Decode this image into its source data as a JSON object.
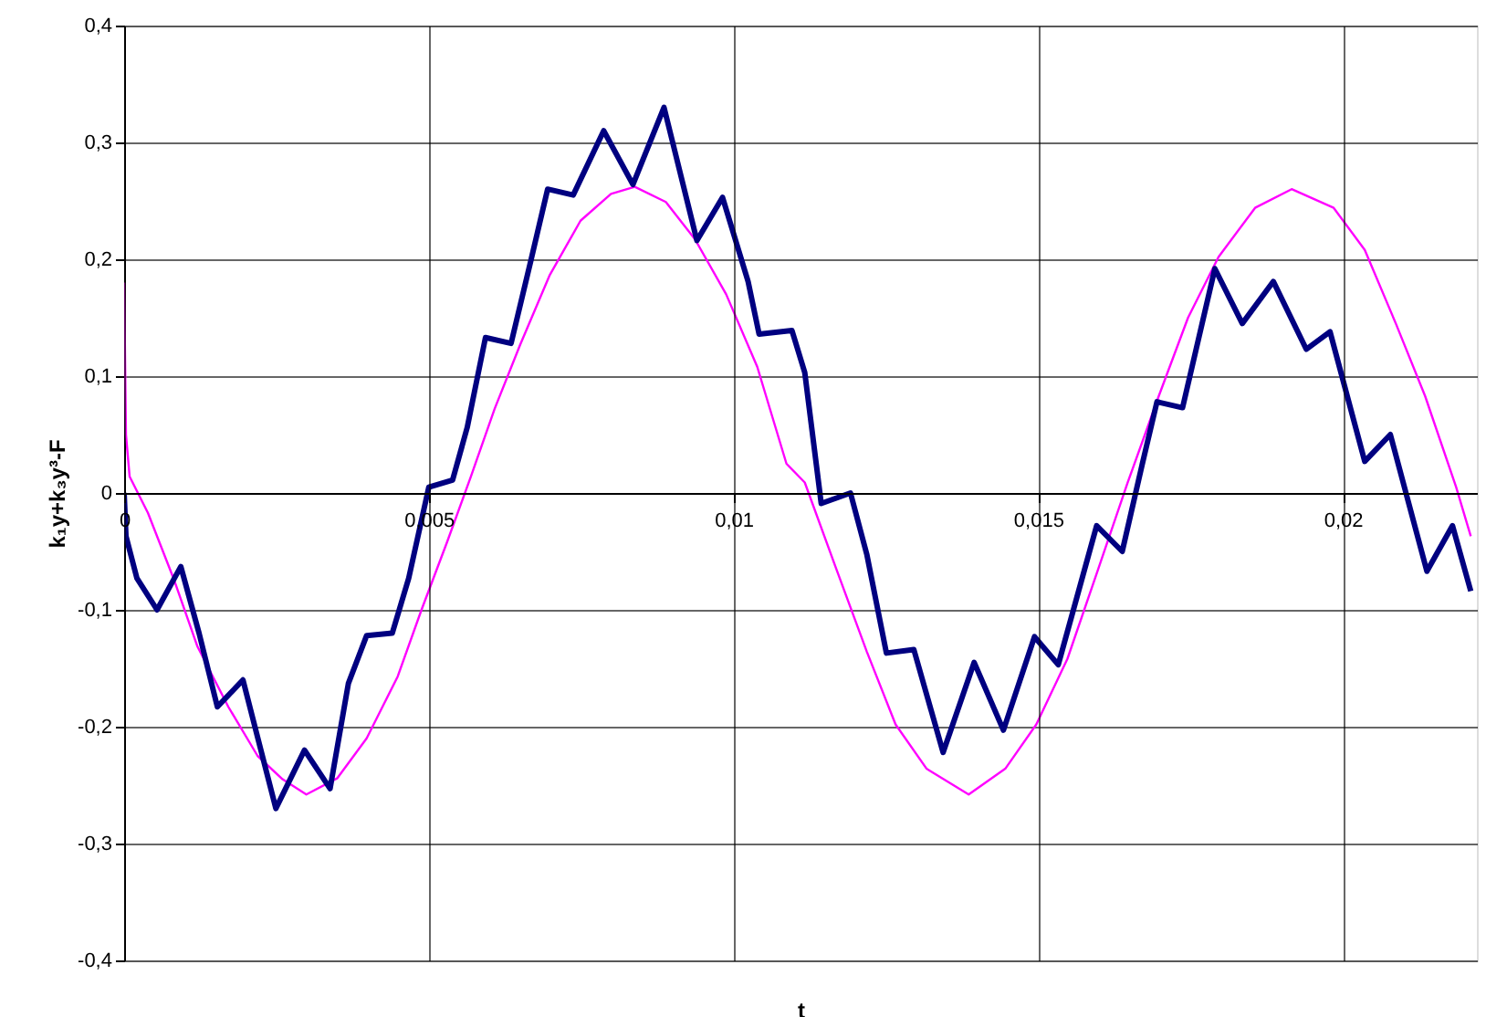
{
  "chart_data": {
    "type": "line",
    "xlabel": "t",
    "ylabel": "k₁y+k₃y³-F",
    "xlim": [
      0,
      0.0222
    ],
    "ylim": [
      -0.4,
      0.4
    ],
    "xticks": [
      {
        "value": 0,
        "label": "0"
      },
      {
        "value": 0.005,
        "label": "0,005"
      },
      {
        "value": 0.01,
        "label": "0,01"
      },
      {
        "value": 0.015,
        "label": "0,015"
      },
      {
        "value": 0.02,
        "label": "0,02"
      }
    ],
    "yticks": [
      {
        "value": -0.4,
        "label": "-0,4"
      },
      {
        "value": -0.3,
        "label": "-0,3"
      },
      {
        "value": -0.2,
        "label": "-0,2"
      },
      {
        "value": -0.1,
        "label": "-0,1"
      },
      {
        "value": 0,
        "label": "0"
      },
      {
        "value": 0.1,
        "label": "0,1"
      },
      {
        "value": 0.2,
        "label": "0,2"
      },
      {
        "value": 0.3,
        "label": "0,3"
      },
      {
        "value": 0.4,
        "label": "0,4"
      }
    ],
    "grid": true,
    "legend": false,
    "marker": "none",
    "line_style": "solid",
    "series": [
      {
        "color": "#000080",
        "x": [
          0,
          3e-05,
          0.00021,
          0.00054,
          0.00093,
          0.00123,
          0.00153,
          0.00195,
          0.00219,
          0.00249,
          0.00296,
          0.00338,
          0.00368,
          0.00398,
          0.0044,
          0.00467,
          0.005,
          0.00539,
          0.00563,
          0.00593,
          0.00635,
          0.00668,
          0.00695,
          0.00737,
          0.00787,
          0.00835,
          0.00886,
          0.0094,
          0.00982,
          0.01024,
          0.01042,
          0.01096,
          0.01117,
          0.01144,
          0.01192,
          0.01219,
          0.01251,
          0.01296,
          0.01344,
          0.01395,
          0.01443,
          0.01494,
          0.01533,
          0.01596,
          0.01638,
          0.01671,
          0.01695,
          0.01737,
          0.0179,
          0.01835,
          0.01886,
          0.0194,
          0.01979,
          0.02036,
          0.02078,
          0.02138,
          0.0218,
          0.0221
        ],
        "values": [
          0,
          -0.037,
          -0.073,
          -0.1,
          -0.063,
          -0.12,
          -0.183,
          -0.16,
          -0.209,
          -0.27,
          -0.22,
          -0.253,
          -0.163,
          -0.122,
          -0.12,
          -0.073,
          0.005,
          0.011,
          0.056,
          0.133,
          0.128,
          0.2,
          0.26,
          0.255,
          0.31,
          0.264,
          0.33,
          0.216,
          0.253,
          0.181,
          0.136,
          0.139,
          0.103,
          -0.009,
          0,
          -0.053,
          -0.137,
          -0.134,
          -0.222,
          -0.145,
          -0.203,
          -0.123,
          -0.147,
          -0.028,
          -0.05,
          0.025,
          0.078,
          0.073,
          0.192,
          0.145,
          0.181,
          0.123,
          0.138,
          0.027,
          0.05,
          -0.067,
          -0.028,
          -0.084
        ]
      },
      {
        "color": "#ff00ff",
        "x": [
          0,
          3e-05,
          9e-05,
          0.00039,
          0.00081,
          0.0012,
          0.00171,
          0.00219,
          0.0026,
          0.00299,
          0.0035,
          0.00398,
          0.00449,
          0.00488,
          0.0053,
          0.00569,
          0.00608,
          0.0065,
          0.00698,
          0.00749,
          0.00799,
          0.00838,
          0.00889,
          0.00937,
          0.00988,
          0.01039,
          0.01087,
          0.01117,
          0.01168,
          0.01219,
          0.01266,
          0.01317,
          0.01386,
          0.01446,
          0.01497,
          0.01548,
          0.01596,
          0.01647,
          0.01698,
          0.01746,
          0.01796,
          0.01856,
          0.01916,
          0.01985,
          0.02036,
          0.02087,
          0.02135,
          0.02186,
          0.0221
        ],
        "values": [
          0.18,
          0.05,
          0.014,
          -0.017,
          -0.073,
          -0.131,
          -0.183,
          -0.225,
          -0.245,
          -0.258,
          -0.244,
          -0.21,
          -0.157,
          -0.1,
          -0.042,
          0.014,
          0.072,
          0.127,
          0.186,
          0.233,
          0.256,
          0.262,
          0.249,
          0.217,
          0.17,
          0.108,
          0.025,
          0.009,
          -0.064,
          -0.136,
          -0.198,
          -0.236,
          -0.258,
          -0.236,
          -0.198,
          -0.142,
          -0.069,
          0.009,
          0.083,
          0.15,
          0.202,
          0.244,
          0.26,
          0.244,
          0.208,
          0.145,
          0.083,
          0.005,
          -0.037
        ]
      }
    ]
  }
}
